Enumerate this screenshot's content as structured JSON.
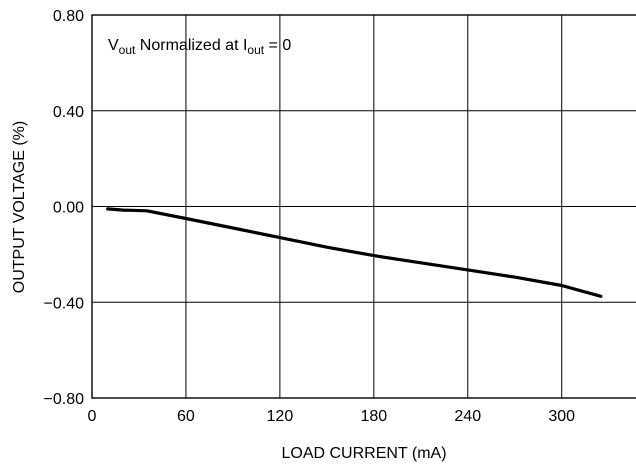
{
  "chart_data": {
    "type": "line",
    "title": "",
    "xlabel": "LOAD CURRENT (mA)",
    "ylabel": "OUTPUT VOLTAGE (%)",
    "xlim": [
      0,
      350
    ],
    "ylim": [
      -0.8,
      0.8
    ],
    "x_ticks": [
      0,
      60,
      120,
      180,
      240,
      300
    ],
    "x_tick_labels": [
      "0",
      "60",
      "120",
      "180",
      "240",
      "300"
    ],
    "y_ticks": [
      0.8,
      0.4,
      0.0,
      -0.4,
      -0.8
    ],
    "y_tick_labels": [
      "0.80",
      "0.40",
      "0.00",
      "−0.40",
      "−0.80"
    ],
    "grid": true,
    "annotation": {
      "base": "V",
      "base_sub": "out",
      "middle": " Normalized at I",
      "middle_sub": "out",
      "tail": " = 0"
    },
    "series": [
      {
        "x": [
          10,
          20,
          35,
          60,
          90,
          120,
          150,
          180,
          210,
          240,
          270,
          300,
          325
        ],
        "y": [
          -0.01,
          -0.015,
          -0.018,
          -0.05,
          -0.09,
          -0.13,
          -0.17,
          -0.205,
          -0.235,
          -0.265,
          -0.295,
          -0.33,
          -0.375
        ]
      }
    ]
  }
}
